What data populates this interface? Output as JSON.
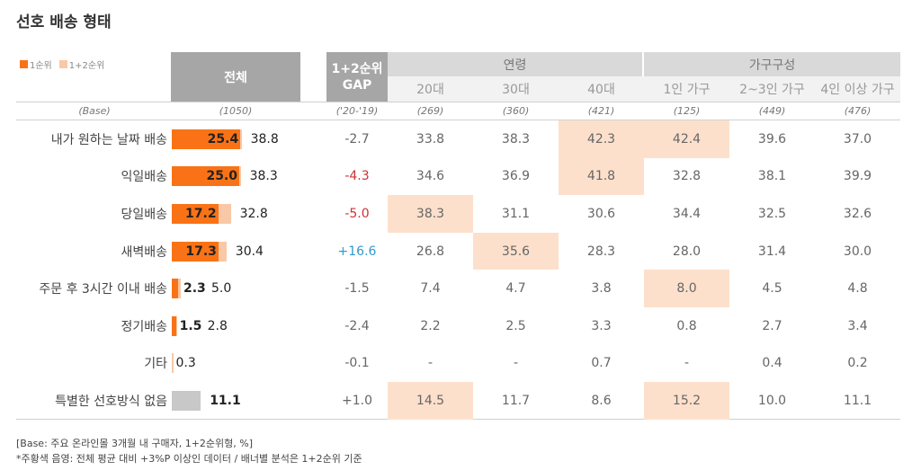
{
  "title": "선호 배송 형태",
  "legend": {
    "first": "1순위",
    "total": "1+2순위"
  },
  "colors": {
    "first": "#f97316",
    "total": "#f9c8a6",
    "highlight": "#fde0cc",
    "gray": "#c8c8c8",
    "gap_negative": "#cc3333",
    "gap_positive": "#3399cc"
  },
  "headers": {
    "total": "전체",
    "gap_line1": "1+2순위",
    "gap_line2": "GAP",
    "group_age": "연령",
    "group_household": "가구구성",
    "sub": [
      "20대",
      "30대",
      "40대",
      "1인 가구",
      "2~3인 가구",
      "4인 이상 가구"
    ]
  },
  "base": {
    "label": "(Base)",
    "total": "(1050)",
    "gap": "('20-'19)",
    "sub": [
      "(269)",
      "(360)",
      "(421)",
      "(125)",
      "(449)",
      "(476)"
    ]
  },
  "chart_data": {
    "type": "bar",
    "title": "선호 배송 형태",
    "categories": [
      "내가 원하는 날짜 배송",
      "익일배송",
      "당일배송",
      "새벽배송",
      "주문 후 3시간 이내 배송",
      "정기배송",
      "기타",
      "특별한 선호방식 없음"
    ],
    "series": [
      {
        "name": "1순위",
        "values": [
          "25.4",
          "25.0",
          "17.2",
          "17.3",
          "2.3",
          "1.5",
          null,
          null
        ]
      },
      {
        "name": "1+2순위",
        "values": [
          "38.8",
          "38.3",
          "32.8",
          "30.4",
          "5.0",
          "2.8",
          "0.3",
          "11.1"
        ]
      }
    ],
    "gap": [
      "-2.7",
      "-4.3",
      "-5.0",
      "+16.6",
      "-1.5",
      "-2.4",
      "-0.1",
      "+1.0"
    ],
    "gap_highlight": [
      "none",
      "negative",
      "negative",
      "positive",
      "none",
      "none",
      "none",
      "none"
    ],
    "segments": [
      "20대",
      "30대",
      "40대",
      "1인 가구",
      "2~3인 가구",
      "4인 이상 가구"
    ],
    "segment_values": [
      [
        "33.8",
        "38.3",
        "42.3",
        "42.4",
        "39.6",
        "37.0"
      ],
      [
        "34.6",
        "36.9",
        "41.8",
        "32.8",
        "38.1",
        "39.9"
      ],
      [
        "38.3",
        "31.1",
        "30.6",
        "34.4",
        "32.5",
        "32.6"
      ],
      [
        "26.8",
        "35.6",
        "28.3",
        "28.0",
        "31.4",
        "30.0"
      ],
      [
        "7.4",
        "4.7",
        "3.8",
        "8.0",
        "4.5",
        "4.8"
      ],
      [
        "2.2",
        "2.5",
        "3.3",
        "0.8",
        "2.7",
        "3.4"
      ],
      [
        "-",
        "-",
        "0.7",
        "-",
        "0.4",
        "0.2"
      ],
      [
        "14.5",
        "11.7",
        "8.6",
        "15.2",
        "10.0",
        "11.1"
      ]
    ],
    "segment_highlights": [
      [
        false,
        false,
        true,
        true,
        false,
        false
      ],
      [
        false,
        false,
        true,
        false,
        false,
        false
      ],
      [
        true,
        false,
        false,
        false,
        false,
        false
      ],
      [
        false,
        true,
        false,
        false,
        false,
        false
      ],
      [
        false,
        false,
        false,
        true,
        false,
        false
      ],
      [
        false,
        false,
        false,
        false,
        false,
        false
      ],
      [
        false,
        false,
        false,
        false,
        false,
        false
      ],
      [
        true,
        false,
        false,
        true,
        false,
        false
      ]
    ],
    "gray_bar_rows": [
      7
    ],
    "xlim": [
      0,
      50
    ]
  },
  "footnotes": [
    "[Base: 주요 온라인몰 3개월 내 구매자, 1+2순위형, %]",
    "*주황색 음영: 전체 평균 대비 +3%P 이상인 데이터 / 배너별 분석은 1+2순위 기준"
  ]
}
